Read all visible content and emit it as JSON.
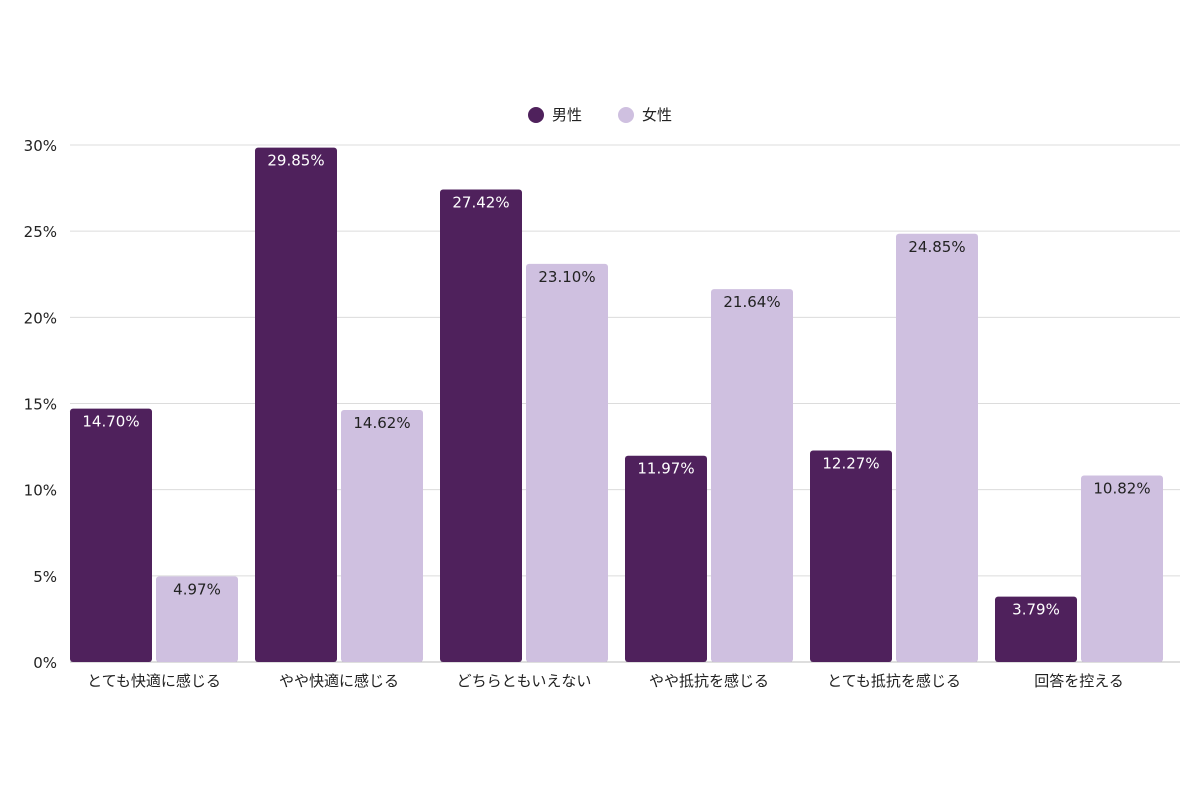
{
  "chart_data": {
    "type": "bar",
    "categories": [
      "とても快適に感じる",
      "やや快適に感じる",
      "どちらともいえない",
      "やや抵抗を感じる",
      "とても抵抗を感じる",
      "回答を控える"
    ],
    "series": [
      {
        "name": "男性",
        "values": [
          14.7,
          29.85,
          27.42,
          11.97,
          12.27,
          3.79
        ],
        "color": "#4f215c"
      },
      {
        "name": "女性",
        "values": [
          4.97,
          14.62,
          23.1,
          21.64,
          24.85,
          10.82
        ],
        "color": "#cfc0e0"
      }
    ],
    "value_labels": [
      [
        "14.70%",
        "29.85%",
        "27.42%",
        "11.97%",
        "12.27%",
        "3.79%"
      ],
      [
        "4.97%",
        "14.62%",
        "23.10%",
        "21.64%",
        "24.85%",
        "10.82%"
      ]
    ],
    "y_ticks": [
      "0%",
      "5%",
      "10%",
      "15%",
      "20%",
      "25%",
      "30%"
    ],
    "ylim": [
      0,
      30
    ],
    "legend_position": "top-center",
    "grid": true,
    "title": "",
    "xlabel": "",
    "ylabel": ""
  }
}
